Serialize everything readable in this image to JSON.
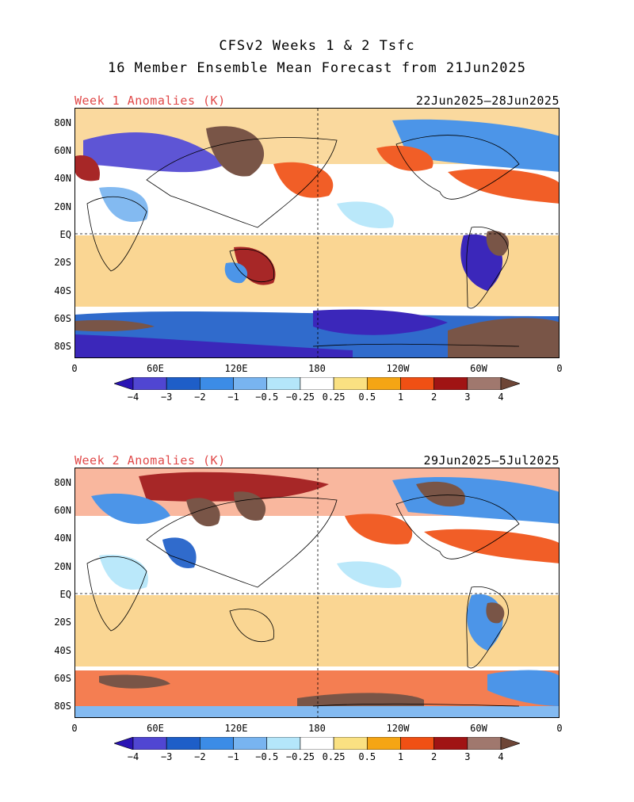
{
  "header": {
    "title_line1": "CFSv2 Weeks 1 & 2 Tsfc",
    "title_line2": "16 Member Ensemble Mean Forecast from 21Jun2025"
  },
  "panels": [
    {
      "label": "Week 1 Anomalies (K)",
      "date_range": "22Jun2025–28Jun2025",
      "label_color": "#e04848"
    },
    {
      "label": "Week 2 Anomalies (K)",
      "date_range": "29Jun2025–5Jul2025",
      "label_color": "#e04848"
    }
  ],
  "map_axes": {
    "lat_labels": [
      "80N",
      "60N",
      "40N",
      "20N",
      "EQ",
      "20S",
      "40S",
      "60S",
      "80S"
    ],
    "lon_labels": [
      "0",
      "60E",
      "120E",
      "180",
      "120W",
      "60W",
      "0"
    ]
  },
  "colorbar": {
    "labels": [
      "−4",
      "−3",
      "−2",
      "−1",
      "−0.5",
      "−0.25",
      "0.25",
      "0.5",
      "1",
      "2",
      "3",
      "4"
    ],
    "colors": [
      "#2a14b4",
      "#5046d2",
      "#1e5ec8",
      "#3c8ce6",
      "#78b4f0",
      "#b4e6fa",
      "#ffffff",
      "#fae182",
      "#f5a514",
      "#f05014",
      "#a01414",
      "#a0786e",
      "#6e4637"
    ]
  }
}
